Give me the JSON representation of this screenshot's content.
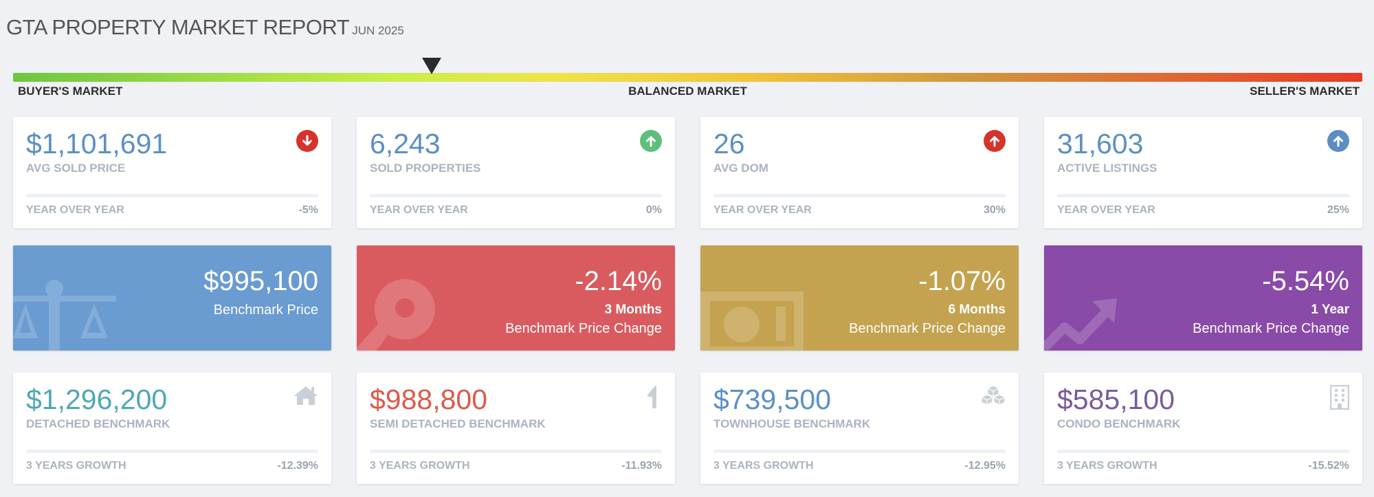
{
  "header": {
    "title": "GTA  PROPERTY MARKET REPORT",
    "date": "JUN 2025"
  },
  "market": {
    "position": 0.31,
    "labels": {
      "left": "BUYER'S MARKET",
      "middle": "BALANCED MARKET",
      "right": "SELLER'S MARKET"
    },
    "colors": [
      "#6cc73f",
      "#eee44a",
      "#e63a27"
    ]
  },
  "stats": [
    {
      "value": "$1,101,691",
      "label": "AVG SOLD PRICE",
      "foot_label": "YEAR OVER YEAR",
      "foot_value": "-5%",
      "direction": "down",
      "icon": "arrow-down-circle-icon",
      "color": "#d6332b"
    },
    {
      "value": "6,243",
      "label": "SOLD PROPERTIES",
      "foot_label": "YEAR OVER YEAR",
      "foot_value": "0%",
      "direction": "up",
      "icon": "arrow-up-circle-icon",
      "color": "#5dbf7b"
    },
    {
      "value": "26",
      "label": "AVG DOM",
      "foot_label": "YEAR OVER YEAR",
      "foot_value": "30%",
      "direction": "up",
      "icon": "arrow-up-circle-icon",
      "color": "#d6332b"
    },
    {
      "value": "31,603",
      "label": "ACTIVE LISTINGS",
      "foot_label": "YEAR OVER YEAR",
      "foot_value": "25%",
      "direction": "up",
      "icon": "arrow-up-circle-icon",
      "color": "#5b8fc4"
    }
  ],
  "benchmarks": [
    {
      "value": "$995,100",
      "line1": "",
      "line2": "Benchmark Price",
      "color": "#6a9bd1",
      "icon": "scale-icon"
    },
    {
      "value": "-2.14%",
      "line1": "3 Months",
      "line2": "Benchmark Price Change",
      "color": "#d95b5f",
      "icon": "key-icon"
    },
    {
      "value": "-1.07%",
      "line1": "6 Months",
      "line2": "Benchmark Price Change",
      "color": "#c4a24f",
      "icon": "money-icon"
    },
    {
      "value": "-5.54%",
      "line1": "1 Year",
      "line2": "Benchmark Price Change",
      "color": "#8a4aa8",
      "icon": "trend-up-icon"
    }
  ],
  "types": [
    {
      "value": "$1,296,200",
      "label": "DETACHED BENCHMARK",
      "foot_label": "3 YEARS GROWTH",
      "foot_value": "-12.39%",
      "color": "#4fa7b6",
      "icon": "house-icon"
    },
    {
      "value": "$988,800",
      "label": "SEMI DETACHED BENCHMARK",
      "foot_label": "3 YEARS GROWTH",
      "foot_value": "-11.93%",
      "color": "#dc5a4a",
      "icon": "half-house-icon"
    },
    {
      "value": "$739,500",
      "label": "TOWNHOUSE BENCHMARK",
      "foot_label": "3 YEARS GROWTH",
      "foot_value": "-12.95%",
      "color": "#5b8fc4",
      "icon": "cubes-icon"
    },
    {
      "value": "$585,100",
      "label": "CONDO BENCHMARK",
      "foot_label": "3 YEARS GROWTH",
      "foot_value": "-15.52%",
      "color": "#7a5a9c",
      "icon": "building-icon"
    }
  ]
}
